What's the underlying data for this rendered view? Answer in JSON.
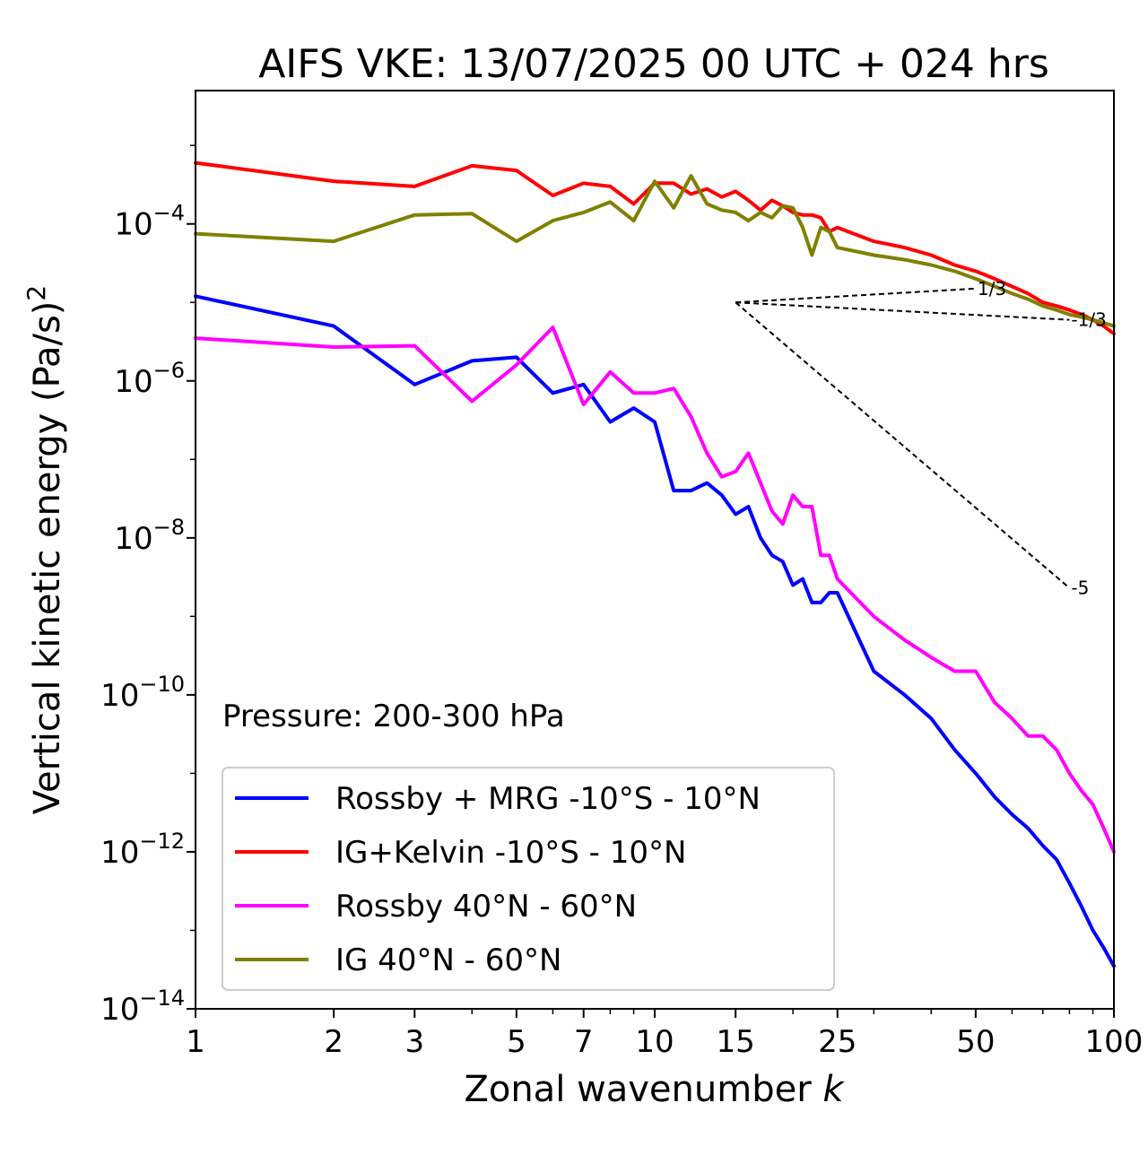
{
  "chart_data": {
    "type": "line",
    "title": "AIFS VKE: 13/07/2025 00 UTC + 024 hrs",
    "xlabel": "Zonal wavenumber",
    "xlabel_symbol": "k",
    "ylabel": "Vertical kinetic energy (Pa/s)",
    "ylabel_exponent": "2",
    "x_scale": "log",
    "y_scale": "log",
    "xlim": [
      1,
      100
    ],
    "ylim": [
      1e-14,
      0.005
    ],
    "x_ticks": [
      1,
      2,
      3,
      5,
      7,
      10,
      15,
      25,
      50,
      100
    ],
    "y_ticks": [
      {
        "value": 1e-14,
        "base": "10",
        "exp": "−14"
      },
      {
        "value": 1e-12,
        "base": "10",
        "exp": "−12"
      },
      {
        "value": 1e-10,
        "base": "10",
        "exp": "−10"
      },
      {
        "value": 1e-08,
        "base": "10",
        "exp": "−8"
      },
      {
        "value": 1e-06,
        "base": "10",
        "exp": "−6"
      },
      {
        "value": 0.0001,
        "base": "10",
        "exp": "−4"
      }
    ],
    "annotation": "Pressure: 200-300 hPa",
    "legend_position": "lower-left",
    "reference_slopes": [
      {
        "label": "1/3",
        "from": [
          15,
          1e-05
        ],
        "to": [
          50,
          1.5e-05
        ]
      },
      {
        "label": "-1/3",
        "from": [
          15,
          1e-05
        ],
        "to": [
          80,
          6e-06
        ]
      },
      {
        "label": "-5",
        "from": [
          15,
          1e-05
        ],
        "to": [
          80,
          2.3e-09
        ]
      }
    ],
    "series": [
      {
        "name": "Rossby + MRG -10°S - 10°N",
        "color": "#0000ff",
        "x": [
          1,
          2,
          3,
          4,
          5,
          6,
          7,
          8,
          9,
          10,
          11,
          12,
          13,
          14,
          15,
          16,
          17,
          18,
          19,
          20,
          21,
          22,
          23,
          24,
          25,
          30,
          35,
          40,
          45,
          50,
          55,
          60,
          65,
          70,
          75,
          80,
          85,
          90,
          95,
          100
        ],
        "y": [
          1.2e-05,
          5e-06,
          9e-07,
          1.8e-06,
          2e-06,
          7e-07,
          9e-07,
          3e-07,
          4.5e-07,
          3e-07,
          4e-08,
          4e-08,
          5e-08,
          3.5e-08,
          2e-08,
          2.5e-08,
          1e-08,
          6e-09,
          5e-09,
          2.5e-09,
          3e-09,
          1.5e-09,
          1.5e-09,
          2e-09,
          2e-09,
          2e-10,
          1e-10,
          5e-11,
          2e-11,
          1e-11,
          5e-12,
          3e-12,
          2e-12,
          1.2e-12,
          8e-13,
          4e-13,
          2e-13,
          1e-13,
          6e-14,
          3.5e-14
        ]
      },
      {
        "name": "IG+Kelvin -10°S - 10°N",
        "color": "#ff0000",
        "x": [
          1,
          2,
          3,
          4,
          5,
          6,
          7,
          8,
          9,
          10,
          11,
          12,
          13,
          14,
          15,
          16,
          17,
          18,
          19,
          20,
          21,
          22,
          23,
          24,
          25,
          30,
          35,
          40,
          45,
          50,
          55,
          60,
          65,
          70,
          75,
          80,
          85,
          90,
          95,
          100
        ],
        "y": [
          0.0006,
          0.00035,
          0.0003,
          0.00055,
          0.00048,
          0.00023,
          0.00033,
          0.0003,
          0.00018,
          0.00033,
          0.00033,
          0.00024,
          0.00028,
          0.00022,
          0.00026,
          0.0002,
          0.00015,
          0.0002,
          0.00017,
          0.00014,
          0.00013,
          0.00013,
          0.00012,
          8e-05,
          9e-05,
          6e-05,
          5e-05,
          4e-05,
          3e-05,
          2.5e-05,
          2e-05,
          1.6e-05,
          1.3e-05,
          1e-05,
          9e-06,
          8e-06,
          7e-06,
          6e-06,
          5e-06,
          4e-06
        ]
      },
      {
        "name": "Rossby 40°N - 60°N",
        "color": "#ff00ff",
        "x": [
          1,
          2,
          3,
          4,
          5,
          6,
          7,
          8,
          9,
          10,
          11,
          12,
          13,
          14,
          15,
          16,
          17,
          18,
          19,
          20,
          21,
          22,
          23,
          24,
          25,
          30,
          35,
          40,
          45,
          50,
          55,
          60,
          65,
          70,
          75,
          80,
          85,
          90,
          95,
          100
        ],
        "y": [
          3.5e-06,
          2.7e-06,
          2.8e-06,
          5.5e-07,
          1.6e-06,
          4.8e-06,
          5e-07,
          1.3e-06,
          7e-07,
          7e-07,
          8e-07,
          3.5e-07,
          1.2e-07,
          6e-08,
          7e-08,
          1.2e-07,
          5e-08,
          2.2e-08,
          1.5e-08,
          3.5e-08,
          2.5e-08,
          2.5e-08,
          6e-09,
          6e-09,
          3e-09,
          1e-09,
          5e-10,
          3e-10,
          2e-10,
          2e-10,
          8e-11,
          5e-11,
          3e-11,
          3e-11,
          2e-11,
          1e-11,
          6e-12,
          4e-12,
          2e-12,
          1e-12
        ]
      },
      {
        "name": "IG 40°N - 60°N",
        "color": "#808000",
        "x": [
          1,
          2,
          3,
          4,
          5,
          6,
          7,
          8,
          9,
          10,
          11,
          12,
          13,
          14,
          15,
          16,
          17,
          18,
          19,
          20,
          21,
          22,
          23,
          24,
          25,
          30,
          35,
          40,
          45,
          50,
          55,
          60,
          65,
          70,
          75,
          80,
          85,
          90,
          95,
          100
        ],
        "y": [
          7.5e-05,
          6e-05,
          0.00013,
          0.000135,
          6e-05,
          0.00011,
          0.00014,
          0.00019,
          0.00011,
          0.00035,
          0.00016,
          0.00041,
          0.00018,
          0.00015,
          0.00014,
          0.00011,
          0.00014,
          0.00012,
          0.00017,
          0.00016,
          9e-05,
          4e-05,
          9e-05,
          8e-05,
          5e-05,
          4e-05,
          3.5e-05,
          3e-05,
          2.5e-05,
          2e-05,
          1.6e-05,
          1.3e-05,
          1.1e-05,
          9e-06,
          8e-06,
          7e-06,
          6.5e-06,
          6e-06,
          5.5e-06,
          5e-06
        ]
      }
    ]
  }
}
